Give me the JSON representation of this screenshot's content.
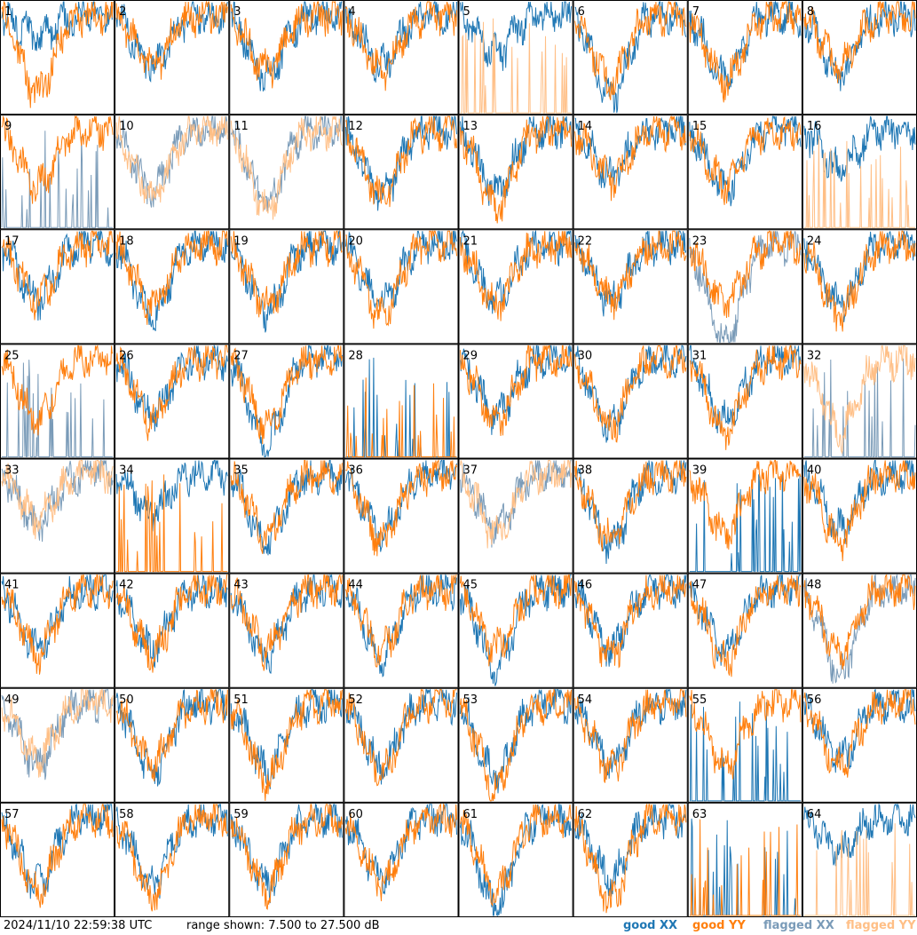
{
  "footer": {
    "timestamp": "2024/11/10 22:59:38 UTC",
    "range": "range shown: 7.500 to 27.500 dB"
  },
  "legend": [
    {
      "label": "good XX",
      "color": "#1f77b4"
    },
    {
      "label": "good YY",
      "color": "#ff7f0e"
    },
    {
      "label": "flagged XX",
      "color": "#7a9bb8"
    },
    {
      "label": "flagged YY",
      "color": "#ffbf86"
    }
  ],
  "chart_data": {
    "type": "line",
    "grid": "8x8",
    "ylim": [
      7.5,
      27.5
    ],
    "yunit": "dB",
    "panels": [
      {
        "n": 1,
        "xx": "good",
        "yy": "good",
        "xx_dip": 0.2,
        "yy_dip": 0.7
      },
      {
        "n": 2,
        "xx": "good",
        "yy": "good",
        "xx_dip": 0.45,
        "yy_dip": 0.45
      },
      {
        "n": 3,
        "xx": "good",
        "yy": "good",
        "xx_dip": 0.55,
        "yy_dip": 0.5
      },
      {
        "n": 4,
        "xx": "good",
        "yy": "good",
        "xx_dip": 0.45,
        "yy_dip": 0.5
      },
      {
        "n": 5,
        "xx": "good",
        "yy": "flagged",
        "xx_dip": 0.35,
        "yy_dip": 0.0,
        "yy_spiky": true
      },
      {
        "n": 6,
        "xx": "good",
        "yy": "good",
        "xx_dip": 0.75,
        "yy_dip": 0.6
      },
      {
        "n": 7,
        "xx": "good",
        "yy": "good",
        "xx_dip": 0.55,
        "yy_dip": 0.6
      },
      {
        "n": 8,
        "xx": "good",
        "yy": "good",
        "xx_dip": 0.55,
        "yy_dip": 0.45
      },
      {
        "n": 9,
        "xx": "flagged",
        "yy": "good",
        "xx_dip": 0.0,
        "yy_dip": 0.5,
        "xx_spiky": true
      },
      {
        "n": 10,
        "xx": "flagged",
        "yy": "flagged",
        "xx_dip": 0.55,
        "yy_dip": 0.6
      },
      {
        "n": 11,
        "xx": "flagged",
        "yy": "flagged",
        "xx_dip": 0.65,
        "yy_dip": 0.7
      },
      {
        "n": 12,
        "xx": "good",
        "yy": "good",
        "xx_dip": 0.6,
        "yy_dip": 0.6
      },
      {
        "n": 13,
        "xx": "good",
        "yy": "good",
        "xx_dip": 0.55,
        "yy_dip": 0.7
      },
      {
        "n": 14,
        "xx": "good",
        "yy": "good",
        "xx_dip": 0.4,
        "yy_dip": 0.45
      },
      {
        "n": 15,
        "xx": "good",
        "yy": "good",
        "xx_dip": 0.55,
        "yy_dip": 0.5
      },
      {
        "n": 16,
        "xx": "good",
        "yy": "flagged",
        "xx_dip": 0.35,
        "yy_dip": 0.0,
        "yy_spiky": true
      },
      {
        "n": 17,
        "xx": "good",
        "yy": "good",
        "xx_dip": 0.5,
        "yy_dip": 0.5
      },
      {
        "n": 18,
        "xx": "good",
        "yy": "good",
        "xx_dip": 0.65,
        "yy_dip": 0.55
      },
      {
        "n": 19,
        "xx": "good",
        "yy": "good",
        "xx_dip": 0.6,
        "yy_dip": 0.55
      },
      {
        "n": 20,
        "xx": "good",
        "yy": "good",
        "xx_dip": 0.55,
        "yy_dip": 0.65
      },
      {
        "n": 21,
        "xx": "good",
        "yy": "good",
        "xx_dip": 0.5,
        "yy_dip": 0.55
      },
      {
        "n": 22,
        "xx": "good",
        "yy": "good",
        "xx_dip": 0.5,
        "yy_dip": 0.5
      },
      {
        "n": 23,
        "xx": "flagged",
        "yy": "good",
        "xx_dip": 0.9,
        "yy_dip": 0.55
      },
      {
        "n": 24,
        "xx": "good",
        "yy": "good",
        "xx_dip": 0.55,
        "yy_dip": 0.65
      },
      {
        "n": 25,
        "xx": "flagged",
        "yy": "good",
        "xx_dip": 0.0,
        "yy_dip": 0.55,
        "xx_spiky": true
      },
      {
        "n": 26,
        "xx": "good",
        "yy": "good",
        "xx_dip": 0.5,
        "yy_dip": 0.55
      },
      {
        "n": 27,
        "xx": "good",
        "yy": "good",
        "xx_dip": 0.75,
        "yy_dip": 0.6
      },
      {
        "n": 28,
        "xx": "good",
        "yy": "good",
        "xx_dip": 0.0,
        "yy_dip": 0.0,
        "xx_spiky": true,
        "yy_spiky": true
      },
      {
        "n": 29,
        "xx": "good",
        "yy": "good",
        "xx_dip": 0.5,
        "yy_dip": 0.55
      },
      {
        "n": 30,
        "xx": "good",
        "yy": "good",
        "xx_dip": 0.6,
        "yy_dip": 0.6
      },
      {
        "n": 31,
        "xx": "good",
        "yy": "good",
        "xx_dip": 0.55,
        "yy_dip": 0.65
      },
      {
        "n": 32,
        "xx": "flagged",
        "yy": "flagged",
        "xx_dip": 0.0,
        "yy_dip": 0.65,
        "xx_spiky": true
      },
      {
        "n": 33,
        "xx": "flagged",
        "yy": "flagged",
        "xx_dip": 0.45,
        "yy_dip": 0.4
      },
      {
        "n": 34,
        "xx": "good",
        "yy": "good",
        "xx_dip": 0.35,
        "yy_dip": 0.0,
        "yy_spiky": true
      },
      {
        "n": 35,
        "xx": "good",
        "yy": "good",
        "xx_dip": 0.6,
        "yy_dip": 0.55
      },
      {
        "n": 36,
        "xx": "good",
        "yy": "good",
        "xx_dip": 0.55,
        "yy_dip": 0.6
      },
      {
        "n": 37,
        "xx": "flagged",
        "yy": "flagged",
        "xx_dip": 0.5,
        "yy_dip": 0.55
      },
      {
        "n": 38,
        "xx": "good",
        "yy": "good",
        "xx_dip": 0.65,
        "yy_dip": 0.6
      },
      {
        "n": 39,
        "xx": "good",
        "yy": "good",
        "xx_dip": 0.0,
        "yy_dip": 0.55,
        "xx_spiky": true
      },
      {
        "n": 40,
        "xx": "good",
        "yy": "good",
        "xx_dip": 0.5,
        "yy_dip": 0.6
      },
      {
        "n": 41,
        "xx": "good",
        "yy": "good",
        "xx_dip": 0.55,
        "yy_dip": 0.6
      },
      {
        "n": 42,
        "xx": "good",
        "yy": "good",
        "xx_dip": 0.55,
        "yy_dip": 0.6
      },
      {
        "n": 43,
        "xx": "good",
        "yy": "good",
        "xx_dip": 0.6,
        "yy_dip": 0.55
      },
      {
        "n": 44,
        "xx": "good",
        "yy": "good",
        "xx_dip": 0.6,
        "yy_dip": 0.55
      },
      {
        "n": 45,
        "xx": "good",
        "yy": "good",
        "xx_dip": 0.7,
        "yy_dip": 0.55
      },
      {
        "n": 46,
        "xx": "good",
        "yy": "good",
        "xx_dip": 0.55,
        "yy_dip": 0.6
      },
      {
        "n": 47,
        "xx": "good",
        "yy": "good",
        "xx_dip": 0.55,
        "yy_dip": 0.65
      },
      {
        "n": 48,
        "xx": "flagged",
        "yy": "good",
        "xx_dip": 0.75,
        "yy_dip": 0.55
      },
      {
        "n": 49,
        "xx": "flagged",
        "yy": "flagged",
        "xx_dip": 0.55,
        "yy_dip": 0.5
      },
      {
        "n": 50,
        "xx": "good",
        "yy": "good",
        "xx_dip": 0.6,
        "yy_dip": 0.55
      },
      {
        "n": 51,
        "xx": "good",
        "yy": "good",
        "xx_dip": 0.6,
        "yy_dip": 0.7
      },
      {
        "n": 52,
        "xx": "good",
        "yy": "good",
        "xx_dip": 0.55,
        "yy_dip": 0.6
      },
      {
        "n": 53,
        "xx": "good",
        "yy": "good",
        "xx_dip": 0.65,
        "yy_dip": 0.75
      },
      {
        "n": 54,
        "xx": "good",
        "yy": "good",
        "xx_dip": 0.55,
        "yy_dip": 0.6
      },
      {
        "n": 55,
        "xx": "good",
        "yy": "good",
        "xx_dip": 0.0,
        "yy_dip": 0.55,
        "xx_spiky": true
      },
      {
        "n": 56,
        "xx": "good",
        "yy": "good",
        "xx_dip": 0.5,
        "yy_dip": 0.55
      },
      {
        "n": 57,
        "xx": "good",
        "yy": "good",
        "xx_dip": 0.6,
        "yy_dip": 0.65
      },
      {
        "n": 58,
        "xx": "good",
        "yy": "good",
        "xx_dip": 0.6,
        "yy_dip": 0.7
      },
      {
        "n": 59,
        "xx": "good",
        "yy": "good",
        "xx_dip": 0.6,
        "yy_dip": 0.65
      },
      {
        "n": 60,
        "xx": "good",
        "yy": "good",
        "xx_dip": 0.55,
        "yy_dip": 0.6
      },
      {
        "n": 61,
        "xx": "good",
        "yy": "good",
        "xx_dip": 0.8,
        "yy_dip": 0.65
      },
      {
        "n": 62,
        "xx": "good",
        "yy": "good",
        "xx_dip": 0.55,
        "yy_dip": 0.75
      },
      {
        "n": 63,
        "xx": "good",
        "yy": "good",
        "xx_dip": 0.0,
        "yy_dip": 0.0,
        "xx_spiky": true,
        "yy_spiky": true
      },
      {
        "n": 64,
        "xx": "good",
        "yy": "flagged",
        "xx_dip": 0.3,
        "yy_dip": 0.0,
        "yy_spiky": true
      }
    ]
  }
}
